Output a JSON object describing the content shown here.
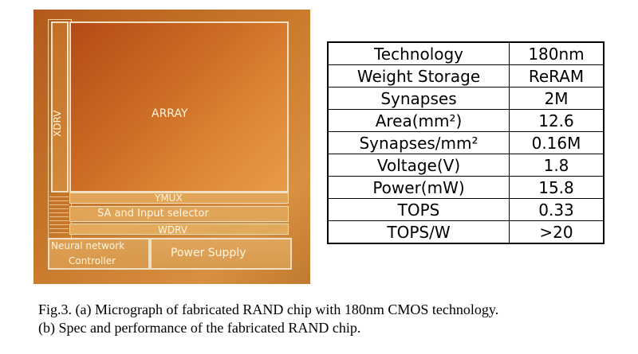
{
  "micrograph": {
    "labels": {
      "array": "ARRAY",
      "xdrv": "XDRV",
      "ymux": "YMUX",
      "sa": "SA and Input selector",
      "wdrv": "WDRV",
      "nn_line1": "Neural network",
      "nn_line2": "Controller",
      "power": "Power Supply"
    }
  },
  "spec_table": {
    "rows": [
      {
        "key": "Technology",
        "value": "180nm"
      },
      {
        "key": "Weight Storage",
        "value": "ReRAM"
      },
      {
        "key": "Synapses",
        "value": "2M"
      },
      {
        "key": "Area(mm²)",
        "value": "12.6"
      },
      {
        "key": "Synapses/mm²",
        "value": "0.16M"
      },
      {
        "key": "Voltage(V)",
        "value": "1.8"
      },
      {
        "key": "Power(mW)",
        "value": "15.8"
      },
      {
        "key": "TOPS",
        "value": "0.33"
      },
      {
        "key": "TOPS/W",
        "value": ">20"
      }
    ]
  },
  "caption": {
    "line1": "Fig.3. (a) Micrograph of fabricated RAND chip with 180nm CMOS technology.",
    "line2": "(b) Spec and performance of the fabricated RAND chip."
  }
}
